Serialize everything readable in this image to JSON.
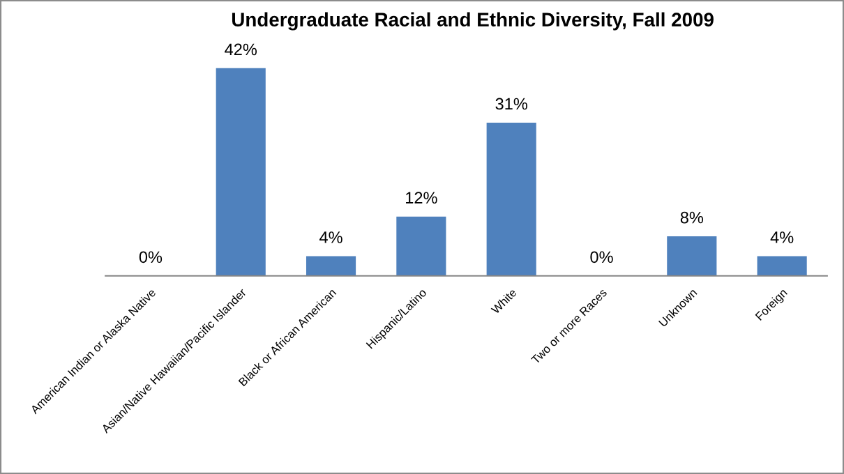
{
  "chart_data": {
    "type": "bar",
    "title": "Undergraduate Racial and Ethnic Diversity, Fall 2009",
    "categories": [
      "American Indian or Alaska Native",
      "Asian/Native Hawaiian/Pacific Islander",
      "Black or African American",
      "Hispanic/Latino",
      "White",
      "Two or more Races",
      "Unknown",
      "Foreign"
    ],
    "values": [
      0,
      42,
      4,
      12,
      31,
      0,
      8,
      4
    ],
    "value_labels": [
      "0%",
      "42%",
      "4%",
      "12%",
      "31%",
      "0%",
      "8%",
      "4%"
    ],
    "color": "#4f81bd",
    "grid": false,
    "legend": false
  }
}
